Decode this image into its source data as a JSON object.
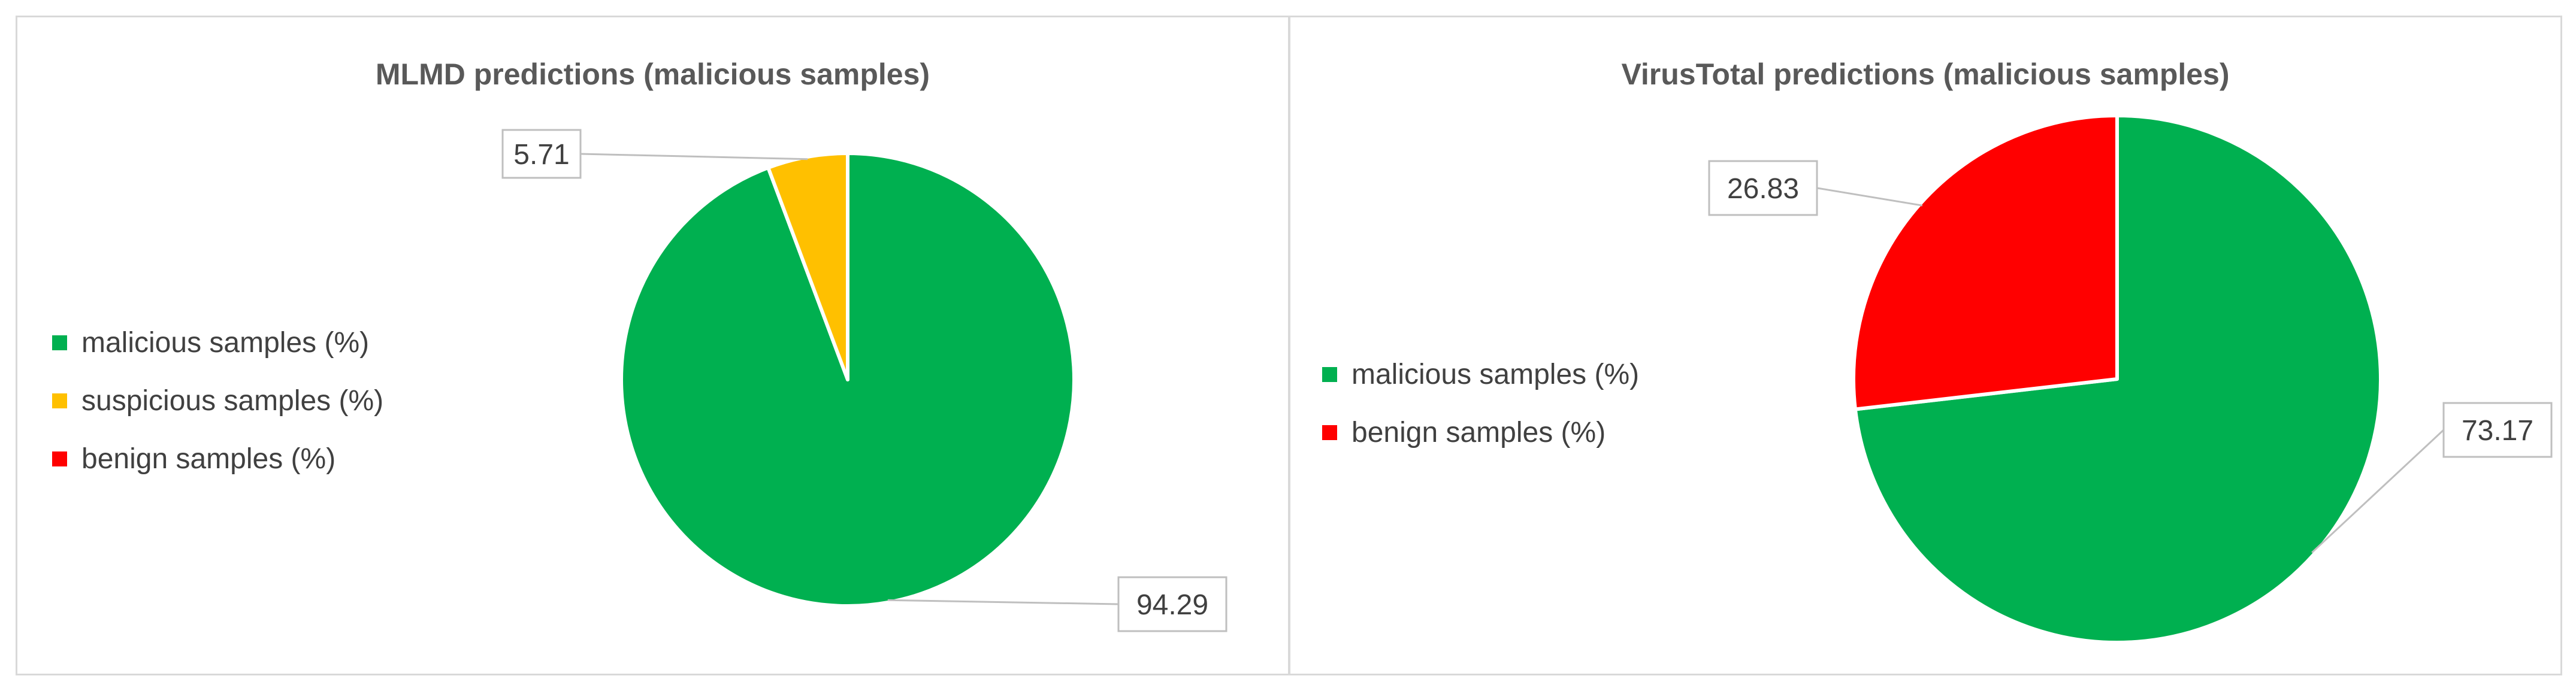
{
  "chart_data": [
    {
      "type": "pie",
      "title": "MLMD predictions (malicious samples)",
      "categories": [
        "malicious samples (%)",
        "suspicious samples (%)",
        "benign samples (%)"
      ],
      "values": [
        94.29,
        5.71,
        0
      ],
      "colors": [
        "#00b050",
        "#ffc000",
        "#ff0000"
      ],
      "data_labels": [
        "94.29",
        "5.71",
        ""
      ],
      "legend_position": "left"
    },
    {
      "type": "pie",
      "title": "VirusTotal predictions (malicious samples)",
      "categories": [
        "malicious samples (%)",
        "benign samples (%)"
      ],
      "values": [
        73.17,
        26.83
      ],
      "colors": [
        "#00b050",
        "#ff0000"
      ],
      "data_labels": [
        "73.17",
        "26.83"
      ],
      "legend_position": "left"
    }
  ]
}
